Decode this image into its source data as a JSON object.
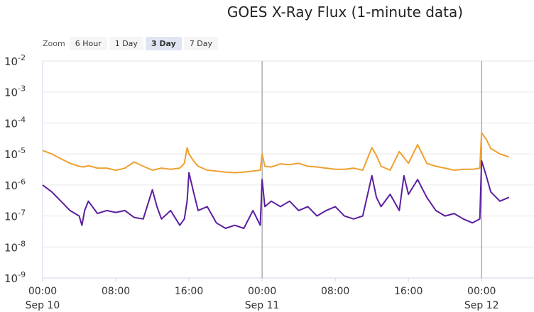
{
  "chart_data": {
    "type": "line",
    "title": "GOES X-Ray Flux (1-minute data)",
    "yscale": "log",
    "ylim": [
      1e-09,
      0.01
    ],
    "y_tick_labels": [
      {
        "base": "10",
        "exp": "-2"
      },
      {
        "base": "10",
        "exp": "-3"
      },
      {
        "base": "10",
        "exp": "-4"
      },
      {
        "base": "10",
        "exp": "-5"
      },
      {
        "base": "10",
        "exp": "-6"
      },
      {
        "base": "10",
        "exp": "-7"
      },
      {
        "base": "10",
        "exp": "-8"
      },
      {
        "base": "10",
        "exp": "-9"
      }
    ],
    "xlim_hours": [
      0,
      72
    ],
    "x_ticks": [
      {
        "hour": 0,
        "time": "00:00",
        "date": "Sep 10"
      },
      {
        "hour": 8,
        "time": "08:00",
        "date": ""
      },
      {
        "hour": 16,
        "time": "16:00",
        "date": ""
      },
      {
        "hour": 24,
        "time": "00:00",
        "date": "Sep 11"
      },
      {
        "hour": 32,
        "time": "08:00",
        "date": ""
      },
      {
        "hour": 40,
        "time": "16:00",
        "date": ""
      },
      {
        "hour": 48,
        "time": "00:00",
        "date": "Sep 12"
      }
    ],
    "day_boundaries_hours": [
      24,
      48
    ],
    "grid": true,
    "series": [
      {
        "color": "#f0a030",
        "x": [
          0,
          1,
          2,
          3,
          4,
          4.5,
          5,
          6,
          7,
          8,
          8.5,
          9,
          10,
          11,
          12,
          13,
          14,
          15,
          15.5,
          15.8,
          16,
          16.5,
          17,
          18,
          19,
          20,
          21,
          22,
          23,
          23.8,
          24,
          24.3,
          25,
          26,
          27,
          28,
          29,
          30,
          31,
          32,
          33,
          34,
          35,
          36,
          36.5,
          37,
          38,
          39,
          40,
          41,
          42,
          43,
          44,
          45,
          46,
          47,
          47.8,
          48,
          48.5,
          49,
          50,
          51
        ],
        "y": [
          1.3e-05,
          1e-05,
          7e-06,
          5e-06,
          4e-06,
          3.8e-06,
          4.2e-06,
          3.5e-06,
          3.5e-06,
          3e-06,
          3.2e-06,
          3.5e-06,
          5.5e-06,
          4e-06,
          3e-06,
          3.5e-06,
          3.2e-06,
          3.5e-06,
          5e-06,
          1.6e-05,
          1e-05,
          6e-06,
          4e-06,
          3e-06,
          2.8e-06,
          2.6e-06,
          2.5e-06,
          2.6e-06,
          2.8e-06,
          3e-06,
          1e-05,
          4e-06,
          3.8e-06,
          4.8e-06,
          4.5e-06,
          5e-06,
          4e-06,
          3.8e-06,
          3.5e-06,
          3.2e-06,
          3.2e-06,
          3.5e-06,
          3e-06,
          1.6e-05,
          9e-06,
          4e-06,
          3e-06,
          1.2e-05,
          5e-06,
          2e-05,
          5e-06,
          4e-06,
          3.5e-06,
          3e-06,
          3.2e-06,
          3.2e-06,
          3.5e-06,
          4.8e-05,
          3e-05,
          1.5e-05,
          1e-05,
          8e-06
        ]
      },
      {
        "color": "#5b1fa0",
        "x": [
          0,
          1,
          2,
          3,
          4,
          4.3,
          4.6,
          5,
          6,
          7,
          8,
          9,
          10,
          11,
          12,
          12.5,
          13,
          14,
          15,
          15.5,
          15.8,
          16,
          16.5,
          17,
          18,
          19,
          20,
          21,
          22,
          23,
          23.8,
          24,
          24.3,
          25,
          26,
          27,
          28,
          29,
          30,
          31,
          32,
          33,
          34,
          35,
          36,
          36.5,
          37,
          38,
          39,
          39.5,
          40,
          41,
          42,
          43,
          44,
          45,
          46,
          47,
          47.8,
          48,
          48.5,
          49,
          50,
          51
        ],
        "y": [
          1e-06,
          6e-07,
          3e-07,
          1.5e-07,
          1e-07,
          5e-08,
          1.5e-07,
          3e-07,
          1.2e-07,
          1.5e-07,
          1.3e-07,
          1.5e-07,
          9e-08,
          8e-08,
          7e-07,
          2e-07,
          8e-08,
          1.5e-07,
          5e-08,
          8e-08,
          3e-07,
          2.5e-06,
          6e-07,
          1.5e-07,
          2e-07,
          6e-08,
          4e-08,
          5e-08,
          4e-08,
          1.5e-07,
          5e-08,
          1.5e-06,
          2e-07,
          3e-07,
          2e-07,
          3e-07,
          1.5e-07,
          2e-07,
          1e-07,
          1.5e-07,
          2e-07,
          1e-07,
          8e-08,
          1e-07,
          2e-06,
          4e-07,
          2e-07,
          5e-07,
          1.5e-07,
          2e-06,
          5e-07,
          1.5e-06,
          4e-07,
          1.5e-07,
          1e-07,
          1.2e-07,
          8e-08,
          6e-08,
          8e-08,
          6e-06,
          2e-06,
          6e-07,
          3e-07,
          4e-07
        ]
      }
    ]
  },
  "zoom": {
    "label": "Zoom",
    "buttons": [
      "6 Hour",
      "1 Day",
      "3 Day",
      "7 Day"
    ],
    "active": "3 Day"
  }
}
